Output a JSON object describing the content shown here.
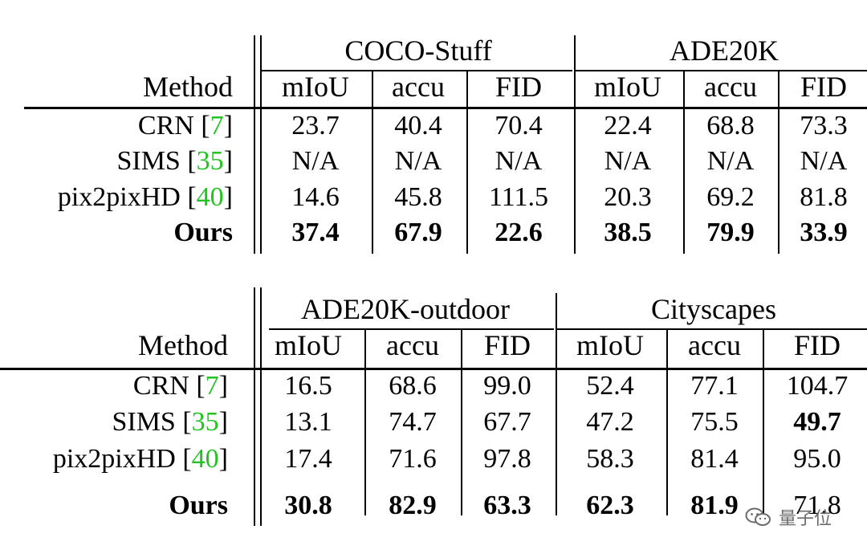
{
  "tables": [
    {
      "method_header": "Method",
      "groups": [
        "COCO-Stuff",
        "ADE20K"
      ],
      "metrics": [
        "mIoU",
        "accu",
        "FID",
        "mIoU",
        "accu",
        "FID"
      ],
      "rows": [
        {
          "name": "CRN",
          "ref": "7",
          "values": [
            "23.7",
            "40.4",
            "70.4",
            "22.4",
            "68.8",
            "73.3"
          ]
        },
        {
          "name": "SIMS",
          "ref": "35",
          "values": [
            "N/A",
            "N/A",
            "N/A",
            "N/A",
            "N/A",
            "N/A"
          ]
        },
        {
          "name": "pix2pixHD",
          "ref": "40",
          "values": [
            "14.6",
            "45.8",
            "111.5",
            "20.3",
            "69.2",
            "81.8"
          ]
        },
        {
          "name": "Ours",
          "ref": "",
          "values": [
            "37.4",
            "67.9",
            "22.6",
            "38.5",
            "79.9",
            "33.9"
          ]
        }
      ],
      "bold": [
        [
          3,
          0
        ],
        [
          3,
          1
        ],
        [
          3,
          2
        ],
        [
          3,
          3
        ],
        [
          3,
          4
        ],
        [
          3,
          5
        ]
      ]
    },
    {
      "method_header": "Method",
      "groups": [
        "ADE20K-outdoor",
        "Cityscapes"
      ],
      "metrics": [
        "mIoU",
        "accu",
        "FID",
        "mIoU",
        "accu",
        "FID"
      ],
      "rows": [
        {
          "name": "CRN",
          "ref": "7",
          "values": [
            "16.5",
            "68.6",
            "99.0",
            "52.4",
            "77.1",
            "104.7"
          ]
        },
        {
          "name": "SIMS",
          "ref": "35",
          "values": [
            "13.1",
            "74.7",
            "67.7",
            "47.2",
            "75.5",
            "49.7"
          ]
        },
        {
          "name": "pix2pixHD",
          "ref": "40",
          "values": [
            "17.4",
            "71.6",
            "97.8",
            "58.3",
            "81.4",
            "95.0"
          ]
        },
        {
          "name": "Ours",
          "ref": "",
          "values": [
            "30.8",
            "82.9",
            "63.3",
            "62.3",
            "81.9",
            "71.8"
          ]
        }
      ],
      "bold": [
        [
          1,
          5
        ],
        [
          3,
          0
        ],
        [
          3,
          1
        ],
        [
          3,
          2
        ],
        [
          3,
          3
        ],
        [
          3,
          4
        ]
      ]
    }
  ],
  "watermark": {
    "text": "量子位",
    "icon": "wechat-icon"
  },
  "colors": {
    "reference_link": "#22c322",
    "watermark": "#6b6b6b"
  }
}
